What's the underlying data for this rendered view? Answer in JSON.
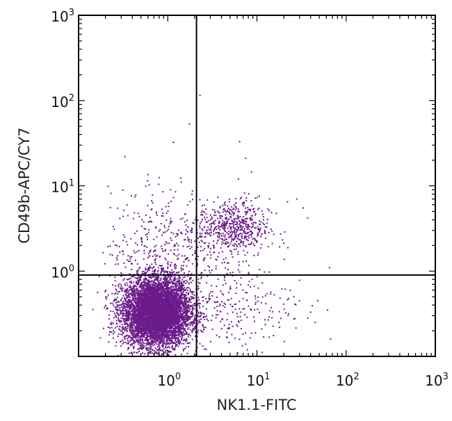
{
  "chart_data": {
    "type": "scatter",
    "title": "",
    "xlabel": "NK1.1-FITC",
    "ylabel": "CD49b-APC/CY7",
    "xscale": "log",
    "yscale": "log",
    "xlim": [
      0.1,
      1000
    ],
    "ylim": [
      0.1,
      1000
    ],
    "x_ticks": [
      {
        "base": "10",
        "exp": "0",
        "value": 1
      },
      {
        "base": "10",
        "exp": "1",
        "value": 10
      },
      {
        "base": "10",
        "exp": "2",
        "value": 100
      },
      {
        "base": "10",
        "exp": "3",
        "value": 1000
      }
    ],
    "y_ticks": [
      {
        "base": "10",
        "exp": "0",
        "value": 1
      },
      {
        "base": "10",
        "exp": "1",
        "value": 10
      },
      {
        "base": "10",
        "exp": "2",
        "value": 100
      },
      {
        "base": "10",
        "exp": "3",
        "value": 1000
      }
    ],
    "quadrant_gates": {
      "x": 2.1,
      "y": 0.9
    },
    "point_color": "#6a1b8a",
    "populations": [
      {
        "center_x": 0.75,
        "center_y": 0.33,
        "spread_log_x": 0.19,
        "spread_log_y": 0.2,
        "approx_events": 6500
      },
      {
        "center_x": 5.5,
        "center_y": 3.2,
        "spread_log_x": 0.2,
        "spread_log_y": 0.17,
        "approx_events": 600
      },
      {
        "center_x": 5.0,
        "center_y": 0.4,
        "spread_log_x": 0.35,
        "spread_log_y": 0.25,
        "approx_events": 250
      },
      {
        "center_x": 0.9,
        "center_y": 1.8,
        "spread_log_x": 0.3,
        "spread_log_y": 0.35,
        "approx_events": 400
      }
    ],
    "outliers": [
      [
        0.33,
        22
      ],
      [
        1.75,
        53
      ],
      [
        2.3,
        115
      ],
      [
        0.6,
        13.5
      ],
      [
        0.8,
        12.5
      ],
      [
        6.4,
        33
      ],
      [
        7.5,
        21
      ],
      [
        8.7,
        14.5
      ],
      [
        6.2,
        12
      ],
      [
        28,
        7
      ],
      [
        33,
        5.5
      ],
      [
        37,
        4.2
      ],
      [
        22,
        6.5
      ],
      [
        48,
        0.45
      ],
      [
        40,
        0.33
      ],
      [
        62,
        0.35
      ],
      [
        67,
        0.16
      ],
      [
        65,
        1.1
      ],
      [
        26,
        0.5
      ],
      [
        19,
        0.62
      ],
      [
        45,
        0.25
      ],
      [
        30,
        0.78
      ]
    ]
  }
}
